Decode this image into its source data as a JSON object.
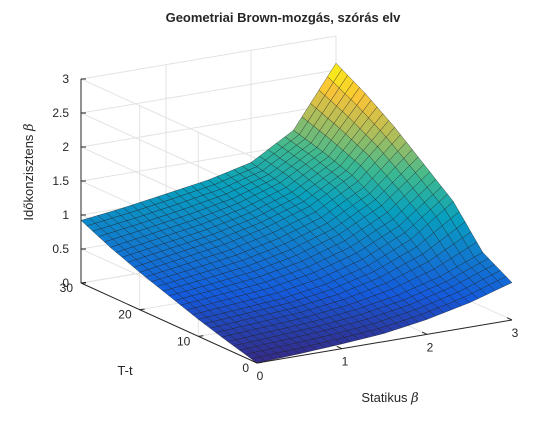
{
  "chart_data": {
    "type": "surface",
    "title": "Geometriai Brown-mozgás, szórás elv",
    "xlabel_text": "Statikus ",
    "xlabel_symbol": "β",
    "ylabel": "T-t",
    "zlabel_text": "Időkonzisztens ",
    "zlabel_symbol": "β",
    "xlim": [
      0,
      3
    ],
    "ylim": [
      0,
      30
    ],
    "zlim": [
      0,
      3
    ],
    "xticks": [
      "0",
      "1",
      "2",
      "3"
    ],
    "yticks": [
      "0",
      "10",
      "20",
      "30"
    ],
    "zticks": [
      "0",
      "0.5",
      "1",
      "1.5",
      "2",
      "2.5",
      "3"
    ],
    "grid": true,
    "colormap": "parula",
    "x": [
      0,
      0.5,
      1.0,
      1.5,
      2.0,
      2.5,
      3.0
    ],
    "y": [
      0,
      5,
      10,
      15,
      20,
      25,
      30
    ],
    "z": [
      [
        0.0,
        0.03,
        0.07,
        0.12,
        0.22,
        0.36,
        0.55
      ],
      [
        0.12,
        0.16,
        0.2,
        0.27,
        0.38,
        0.55,
        0.8
      ],
      [
        0.25,
        0.3,
        0.35,
        0.45,
        0.62,
        0.9,
        1.35
      ],
      [
        0.4,
        0.47,
        0.55,
        0.68,
        0.88,
        1.2,
        1.7
      ],
      [
        0.55,
        0.65,
        0.75,
        0.9,
        1.1,
        1.45,
        2.05
      ],
      [
        0.72,
        0.82,
        0.92,
        1.05,
        1.25,
        1.6,
        2.35
      ],
      [
        0.92,
        1.0,
        1.1,
        1.2,
        1.35,
        1.72,
        2.6
      ]
    ]
  }
}
